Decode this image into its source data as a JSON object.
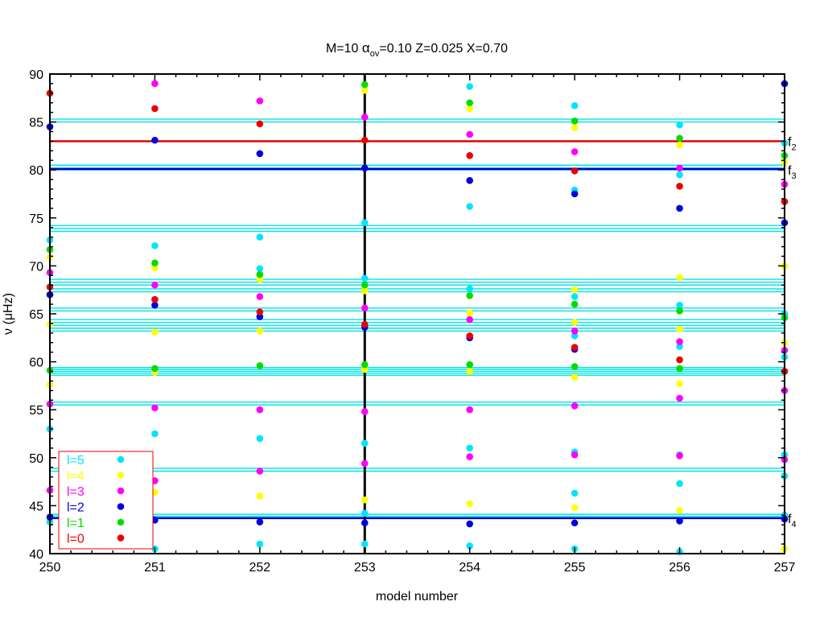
{
  "chart_data": {
    "type": "scatter",
    "title": {
      "prefix": "M=10  ",
      "alpha": "α",
      "alpha_sub": "ov",
      "rest": "=0.10  Z=0.025   X=0.70"
    },
    "xlabel": "model number",
    "ylabel": "ν (μHz)",
    "xlim": [
      250,
      257
    ],
    "ylim": [
      40,
      90
    ],
    "xticks": [
      "250",
      "251",
      "252",
      "253",
      "254",
      "255",
      "256",
      "257"
    ],
    "yticks": [
      "40",
      "45",
      "50",
      "55",
      "60",
      "65",
      "70",
      "75",
      "80",
      "85",
      "90"
    ],
    "grid": false,
    "vertical_line": {
      "x": 253,
      "color": "#000000"
    },
    "hlines": {
      "cyan": {
        "color": "#00e5e5",
        "values": [
          85.3,
          85.0,
          80.5,
          80.2,
          80.0,
          74.2,
          73.9,
          73.6,
          68.6,
          68.3,
          68.0,
          67.6,
          67.3,
          65.6,
          65.3,
          64.4,
          64.1,
          63.8,
          63.5,
          63.2,
          59.4,
          59.2,
          59.0,
          58.8,
          58.6,
          55.8,
          55.5,
          48.9,
          48.6,
          44.1,
          43.9
        ]
      },
      "blue": {
        "color": "#0000cc",
        "values": [
          80.1,
          43.7
        ]
      },
      "red": {
        "color": "#e00000",
        "values": [
          83.0
        ]
      }
    },
    "line_labels": [
      {
        "letter": "f",
        "sub": "2",
        "y": 83.0
      },
      {
        "letter": "f",
        "sub": "3",
        "y": 80.0
      },
      {
        "letter": "f",
        "sub": "4",
        "y": 43.7
      }
    ],
    "legend_placement": "bottom-left",
    "series": [
      {
        "name": "l=5",
        "color": "#00e5ff",
        "points": [
          [
            250,
            72.7
          ],
          [
            250,
            69.3
          ],
          [
            250,
            53.0
          ],
          [
            250,
            43.3
          ],
          [
            251,
            72.1
          ],
          [
            251,
            52.5
          ],
          [
            251,
            40.5
          ],
          [
            252,
            73.0
          ],
          [
            252,
            69.7
          ],
          [
            252,
            52.0
          ],
          [
            252,
            41.0
          ],
          [
            253,
            74.5
          ],
          [
            253,
            68.7
          ],
          [
            253,
            51.5
          ],
          [
            253,
            44.2
          ],
          [
            253,
            41.0
          ],
          [
            254,
            88.7
          ],
          [
            254,
            76.2
          ],
          [
            254,
            67.6
          ],
          [
            254,
            51.0
          ],
          [
            254,
            40.8
          ],
          [
            255,
            86.7
          ],
          [
            255,
            77.9
          ],
          [
            255,
            66.8
          ],
          [
            255,
            62.7
          ],
          [
            255,
            50.6
          ],
          [
            255,
            46.3
          ],
          [
            255,
            40.5
          ],
          [
            256,
            84.7
          ],
          [
            256,
            79.5
          ],
          [
            256,
            65.9
          ],
          [
            256,
            61.6
          ],
          [
            256,
            50.3
          ],
          [
            256,
            47.3
          ],
          [
            256,
            40.2
          ],
          [
            257,
            82.8
          ],
          [
            257,
            65.0
          ],
          [
            257,
            60.5
          ],
          [
            257,
            50.3
          ],
          [
            257,
            48.1
          ],
          [
            257,
            44.0
          ]
        ]
      },
      {
        "name": "l=4",
        "color": "#ffff00",
        "points": [
          [
            250,
            70.9
          ],
          [
            250,
            63.9
          ],
          [
            250,
            57.6
          ],
          [
            251,
            69.8
          ],
          [
            251,
            63.1
          ],
          [
            251,
            58.9
          ],
          [
            251,
            46.4
          ],
          [
            252,
            68.6
          ],
          [
            252,
            63.2
          ],
          [
            252,
            46.0
          ],
          [
            253,
            88.3
          ],
          [
            253,
            67.4
          ],
          [
            253,
            59.2
          ],
          [
            253,
            45.6
          ],
          [
            254,
            86.4
          ],
          [
            254,
            65.1
          ],
          [
            254,
            59.0
          ],
          [
            254,
            45.2
          ],
          [
            255,
            84.4
          ],
          [
            255,
            67.5
          ],
          [
            255,
            64.1
          ],
          [
            255,
            58.4
          ],
          [
            255,
            44.8
          ],
          [
            256,
            82.6
          ],
          [
            256,
            68.8
          ],
          [
            256,
            63.4
          ],
          [
            256,
            57.7
          ],
          [
            256,
            44.5
          ],
          [
            257,
            80.8
          ],
          [
            257,
            70.0
          ],
          [
            257,
            62.0
          ],
          [
            257,
            40.5
          ]
        ]
      },
      {
        "name": "l=3",
        "color": "#ff00ff",
        "points": [
          [
            250,
            69.3
          ],
          [
            250,
            55.6
          ],
          [
            250,
            46.6
          ],
          [
            251,
            89.0
          ],
          [
            251,
            68.0
          ],
          [
            251,
            55.2
          ],
          [
            251,
            47.6
          ],
          [
            252,
            87.2
          ],
          [
            252,
            66.8
          ],
          [
            252,
            55.0
          ],
          [
            252,
            48.6
          ],
          [
            253,
            85.5
          ],
          [
            253,
            65.6
          ],
          [
            253,
            54.8
          ],
          [
            253,
            49.4
          ],
          [
            254,
            83.7
          ],
          [
            254,
            64.4
          ],
          [
            254,
            55.0
          ],
          [
            254,
            50.1
          ],
          [
            255,
            81.9
          ],
          [
            255,
            63.2
          ],
          [
            255,
            55.4
          ],
          [
            255,
            50.3
          ],
          [
            256,
            80.2
          ],
          [
            256,
            62.1
          ],
          [
            256,
            56.2
          ],
          [
            256,
            50.2
          ],
          [
            257,
            78.5
          ],
          [
            257,
            61.2
          ],
          [
            257,
            57.0
          ],
          [
            257,
            49.8
          ]
        ]
      },
      {
        "name": "l=2",
        "color": "#0000dd",
        "points": [
          [
            250,
            84.5
          ],
          [
            250,
            67.0
          ],
          [
            250,
            43.8
          ],
          [
            251,
            83.1
          ],
          [
            251,
            65.9
          ],
          [
            251,
            43.5
          ],
          [
            252,
            81.7
          ],
          [
            252,
            64.7
          ],
          [
            252,
            43.3
          ],
          [
            253,
            80.2
          ],
          [
            253,
            63.6
          ],
          [
            253,
            43.2
          ],
          [
            254,
            78.9
          ],
          [
            254,
            62.5
          ],
          [
            254,
            43.1
          ],
          [
            255,
            77.5
          ],
          [
            255,
            61.3
          ],
          [
            255,
            43.2
          ],
          [
            256,
            76.0
          ],
          [
            256,
            43.4
          ],
          [
            257,
            89.0
          ],
          [
            257,
            74.5
          ],
          [
            257,
            43.6
          ]
        ]
      },
      {
        "name": "l=1",
        "color": "#00dd00",
        "points": [
          [
            250,
            71.7
          ],
          [
            250,
            59.1
          ],
          [
            251,
            70.3
          ],
          [
            251,
            59.3
          ],
          [
            252,
            69.1
          ],
          [
            252,
            59.6
          ],
          [
            253,
            88.9
          ],
          [
            253,
            68.0
          ],
          [
            253,
            59.7
          ],
          [
            254,
            87.0
          ],
          [
            254,
            66.9
          ],
          [
            254,
            59.7
          ],
          [
            255,
            85.1
          ],
          [
            255,
            66.0
          ],
          [
            255,
            59.5
          ],
          [
            256,
            83.3
          ],
          [
            256,
            65.3
          ],
          [
            256,
            59.3
          ],
          [
            257,
            81.5
          ],
          [
            257,
            64.6
          ],
          [
            257,
            59.0
          ]
        ]
      },
      {
        "name": "l=0",
        "color": "#ee0000",
        "points": [
          [
            250,
            88.0
          ],
          [
            250,
            67.8
          ],
          [
            251,
            86.4
          ],
          [
            251,
            66.5
          ],
          [
            252,
            84.8
          ],
          [
            252,
            65.2
          ],
          [
            253,
            83.1
          ],
          [
            253,
            63.9
          ],
          [
            254,
            81.5
          ],
          [
            254,
            62.7
          ],
          [
            255,
            79.9
          ],
          [
            255,
            61.5
          ],
          [
            256,
            78.3
          ],
          [
            256,
            60.2
          ],
          [
            257,
            76.7
          ],
          [
            257,
            59.0
          ]
        ]
      }
    ]
  }
}
